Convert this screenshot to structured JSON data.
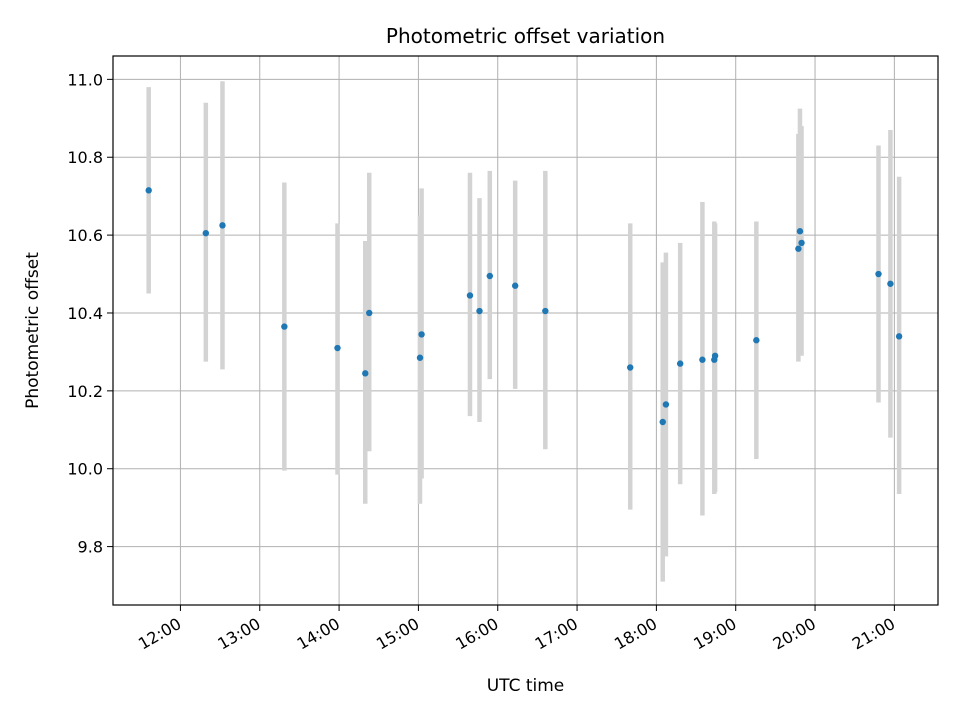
{
  "chart_data": {
    "type": "scatter",
    "title": "Photometric offset variation",
    "xlabel": "UTC time",
    "ylabel": "Photometric offset",
    "x_unit": "hour of day (UTC)",
    "xlim": [
      11.15,
      21.55
    ],
    "ylim": [
      9.65,
      11.06
    ],
    "grid": true,
    "legend": "none",
    "x_ticks": [
      {
        "value": 12,
        "label": "12:00"
      },
      {
        "value": 13,
        "label": "13:00"
      },
      {
        "value": 14,
        "label": "14:00"
      },
      {
        "value": 15,
        "label": "15:00"
      },
      {
        "value": 16,
        "label": "16:00"
      },
      {
        "value": 17,
        "label": "17:00"
      },
      {
        "value": 18,
        "label": "18:00"
      },
      {
        "value": 19,
        "label": "19:00"
      },
      {
        "value": 20,
        "label": "20:00"
      },
      {
        "value": 21,
        "label": "21:00"
      }
    ],
    "y_ticks": [
      {
        "value": 9.8,
        "label": "9.8"
      },
      {
        "value": 10.0,
        "label": "10.0"
      },
      {
        "value": 10.2,
        "label": "10.2"
      },
      {
        "value": 10.4,
        "label": "10.4"
      },
      {
        "value": 10.6,
        "label": "10.6"
      },
      {
        "value": 10.8,
        "label": "10.8"
      },
      {
        "value": 11.0,
        "label": "11.0"
      }
    ],
    "colors": {
      "point": "#1f77b4",
      "errorbar": "#d3d3d3",
      "grid": "#b0b0b0"
    },
    "points": [
      {
        "x": 11.6,
        "y": 10.715,
        "err_low": 10.45,
        "err_high": 10.98
      },
      {
        "x": 12.32,
        "y": 10.605,
        "err_low": 10.275,
        "err_high": 10.94
      },
      {
        "x": 12.53,
        "y": 10.625,
        "err_low": 10.255,
        "err_high": 10.995
      },
      {
        "x": 13.31,
        "y": 10.365,
        "err_low": 9.995,
        "err_high": 10.735
      },
      {
        "x": 13.98,
        "y": 10.31,
        "err_low": 9.985,
        "err_high": 10.63
      },
      {
        "x": 14.33,
        "y": 10.245,
        "err_low": 9.91,
        "err_high": 10.585
      },
      {
        "x": 14.38,
        "y": 10.4,
        "err_low": 10.045,
        "err_high": 10.76
      },
      {
        "x": 15.02,
        "y": 10.285,
        "err_low": 9.91,
        "err_high": 10.65
      },
      {
        "x": 15.04,
        "y": 10.345,
        "err_low": 9.975,
        "err_high": 10.72
      },
      {
        "x": 15.65,
        "y": 10.445,
        "err_low": 10.135,
        "err_high": 10.76
      },
      {
        "x": 15.77,
        "y": 10.405,
        "err_low": 10.12,
        "err_high": 10.695
      },
      {
        "x": 15.9,
        "y": 10.495,
        "err_low": 10.23,
        "err_high": 10.765
      },
      {
        "x": 16.22,
        "y": 10.47,
        "err_low": 10.205,
        "err_high": 10.74
      },
      {
        "x": 16.6,
        "y": 10.405,
        "err_low": 10.05,
        "err_high": 10.765
      },
      {
        "x": 17.67,
        "y": 10.26,
        "err_low": 9.895,
        "err_high": 10.63
      },
      {
        "x": 18.08,
        "y": 10.12,
        "err_low": 9.71,
        "err_high": 10.53
      },
      {
        "x": 18.12,
        "y": 10.165,
        "err_low": 9.775,
        "err_high": 10.555
      },
      {
        "x": 18.3,
        "y": 10.27,
        "err_low": 9.96,
        "err_high": 10.58
      },
      {
        "x": 18.58,
        "y": 10.28,
        "err_low": 9.88,
        "err_high": 10.685
      },
      {
        "x": 18.73,
        "y": 10.28,
        "err_low": 9.935,
        "err_high": 10.635
      },
      {
        "x": 18.74,
        "y": 10.29,
        "err_low": 9.94,
        "err_high": 10.63
      },
      {
        "x": 19.26,
        "y": 10.33,
        "err_low": 10.025,
        "err_high": 10.635
      },
      {
        "x": 19.79,
        "y": 10.565,
        "err_low": 10.275,
        "err_high": 10.86
      },
      {
        "x": 19.81,
        "y": 10.61,
        "err_low": 10.295,
        "err_high": 10.925
      },
      {
        "x": 19.83,
        "y": 10.58,
        "err_low": 10.29,
        "err_high": 10.88
      },
      {
        "x": 20.8,
        "y": 10.5,
        "err_low": 10.17,
        "err_high": 10.83
      },
      {
        "x": 20.95,
        "y": 10.475,
        "err_low": 10.08,
        "err_high": 10.87
      },
      {
        "x": 21.06,
        "y": 10.34,
        "err_low": 9.935,
        "err_high": 10.75
      }
    ]
  }
}
